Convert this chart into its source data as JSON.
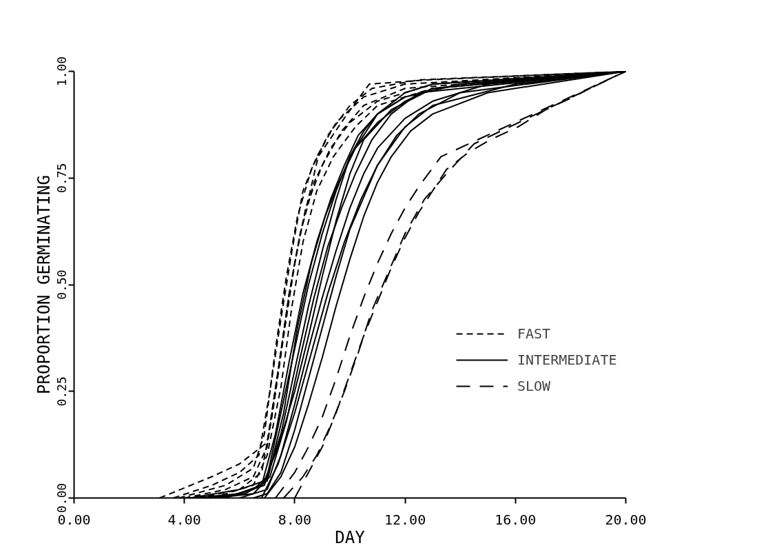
{
  "chart_data": {
    "type": "line",
    "xlabel": "DAY",
    "ylabel": "PROPORTION GERMINATING",
    "xlim": [
      0,
      20
    ],
    "ylim": [
      0,
      1
    ],
    "xticks": [
      {
        "value": 0,
        "label": "0.00"
      },
      {
        "value": 4,
        "label": "4.00"
      },
      {
        "value": 8,
        "label": "8.00"
      },
      {
        "value": 12,
        "label": "12.00"
      },
      {
        "value": 16,
        "label": "16.00"
      },
      {
        "value": 20,
        "label": "20.00"
      }
    ],
    "yticks": [
      {
        "value": 0,
        "label": "0.00"
      },
      {
        "value": 0.25,
        "label": "0.25"
      },
      {
        "value": 0.5,
        "label": "0.50"
      },
      {
        "value": 0.75,
        "label": "0.75"
      },
      {
        "value": 1,
        "label": "1.00"
      }
    ],
    "grid": false,
    "legend": "right",
    "series": [
      {
        "name": "FAST",
        "color": "#000000",
        "line_style": "dashed",
        "x": [
          3.1,
          5,
          6,
          7,
          7.4,
          7.8,
          8.2,
          8.85,
          9.9,
          10.7,
          12.8,
          20
        ],
        "values": [
          0,
          0.05,
          0.08,
          0.13,
          0.3,
          0.48,
          0.62,
          0.8,
          0.9,
          0.97,
          0.98,
          1
        ]
      },
      {
        "color": "#000000",
        "line_style": "dashed",
        "x": [
          3.6,
          5,
          6,
          6.7,
          7.1,
          7.5,
          7.9,
          8.3,
          8.8,
          9.5,
          10.5,
          12,
          20
        ],
        "values": [
          0,
          0.03,
          0.06,
          0.1,
          0.25,
          0.42,
          0.58,
          0.72,
          0.8,
          0.88,
          0.94,
          0.97,
          1
        ]
      },
      {
        "color": "#000000",
        "line_style": "dashed",
        "x": [
          4,
          5.5,
          6.5,
          7,
          7.4,
          7.8,
          8.2,
          8.7,
          9.3,
          10,
          11,
          13,
          20
        ],
        "values": [
          0,
          0.02,
          0.05,
          0.12,
          0.3,
          0.48,
          0.62,
          0.74,
          0.82,
          0.88,
          0.93,
          0.97,
          1
        ]
      },
      {
        "color": "#000000",
        "line_style": "dashed",
        "x": [
          4.5,
          6,
          6.8,
          7.2,
          7.6,
          8,
          8.4,
          9,
          9.7,
          10.5,
          12,
          20
        ],
        "values": [
          0,
          0.02,
          0.06,
          0.2,
          0.38,
          0.55,
          0.68,
          0.78,
          0.86,
          0.92,
          0.96,
          1
        ]
      },
      {
        "color": "#000000",
        "line_style": "dashed",
        "x": [
          5,
          6.5,
          7,
          7.5,
          7.9,
          8.3,
          8.8,
          9.4,
          10.2,
          11,
          13,
          20
        ],
        "values": [
          0,
          0.03,
          0.1,
          0.26,
          0.45,
          0.6,
          0.72,
          0.8,
          0.87,
          0.92,
          0.96,
          1
        ]
      },
      {
        "color": "#000000",
        "line_style": "dashed",
        "x": [
          3.8,
          5.5,
          6.5,
          6.9,
          7.3,
          7.7,
          8.1,
          8.6,
          9.2,
          10,
          10.8,
          12.5,
          20
        ],
        "values": [
          0,
          0.03,
          0.07,
          0.15,
          0.35,
          0.52,
          0.66,
          0.77,
          0.85,
          0.92,
          0.96,
          0.98,
          1
        ]
      },
      {
        "name": "INTERMEDIATE",
        "color": "#000000",
        "line_style": "solid",
        "x": [
          4.3,
          6,
          6.9,
          7.5,
          8,
          8.5,
          9,
          9.5,
          10,
          11,
          12,
          13,
          20
        ],
        "values": [
          0,
          0.01,
          0.03,
          0.15,
          0.3,
          0.45,
          0.58,
          0.7,
          0.8,
          0.9,
          0.95,
          0.97,
          1
        ]
      },
      {
        "color": "#000000",
        "line_style": "solid",
        "x": [
          5.3,
          6.5,
          7,
          7.5,
          8,
          8.5,
          9,
          9.5,
          10,
          10.5,
          11,
          12,
          14,
          20
        ],
        "values": [
          0,
          0.02,
          0.05,
          0.2,
          0.35,
          0.5,
          0.62,
          0.72,
          0.8,
          0.86,
          0.9,
          0.94,
          0.97,
          1
        ]
      },
      {
        "color": "#000000",
        "line_style": "solid",
        "x": [
          4.2,
          6,
          6.9,
          7.4,
          8,
          8.5,
          9,
          9.5,
          10,
          10.5,
          11.5,
          13,
          20
        ],
        "values": [
          0,
          0.02,
          0.04,
          0.12,
          0.25,
          0.38,
          0.52,
          0.65,
          0.76,
          0.84,
          0.91,
          0.96,
          1
        ]
      },
      {
        "color": "#000000",
        "line_style": "solid",
        "x": [
          6,
          7,
          7.5,
          8,
          8.5,
          9,
          9.5,
          10,
          10.5,
          11,
          12,
          13,
          15,
          20
        ],
        "values": [
          0,
          0.02,
          0.1,
          0.22,
          0.35,
          0.47,
          0.58,
          0.68,
          0.76,
          0.82,
          0.89,
          0.93,
          0.97,
          1
        ]
      },
      {
        "color": "#000000",
        "line_style": "solid",
        "x": [
          5.5,
          6.8,
          7.3,
          7.8,
          8.3,
          8.8,
          9.3,
          9.8,
          10.3,
          11,
          12,
          14,
          20
        ],
        "values": [
          0,
          0.03,
          0.15,
          0.32,
          0.48,
          0.6,
          0.7,
          0.78,
          0.85,
          0.9,
          0.94,
          0.97,
          1
        ]
      },
      {
        "color": "#000000",
        "line_style": "solid",
        "x": [
          6.5,
          7,
          7.5,
          8,
          8.5,
          9,
          9.5,
          10,
          11,
          12,
          13,
          16,
          20
        ],
        "values": [
          0,
          0.01,
          0.06,
          0.16,
          0.28,
          0.4,
          0.52,
          0.63,
          0.78,
          0.87,
          0.92,
          0.97,
          1
        ]
      },
      {
        "color": "#000000",
        "line_style": "solid",
        "x": [
          4.8,
          6.2,
          7,
          7.6,
          8.1,
          8.6,
          9.1,
          9.6,
          10.2,
          11,
          12,
          13,
          20
        ],
        "values": [
          0,
          0.01,
          0.04,
          0.2,
          0.4,
          0.55,
          0.66,
          0.74,
          0.82,
          0.88,
          0.93,
          0.96,
          1
        ]
      },
      {
        "color": "#000000",
        "line_style": "solid",
        "x": [
          6.8,
          7.4,
          8,
          8.6,
          9.2,
          9.8,
          10.4,
          11,
          11.7,
          12.5,
          14,
          20
        ],
        "values": [
          0,
          0.08,
          0.2,
          0.34,
          0.48,
          0.6,
          0.7,
          0.78,
          0.85,
          0.9,
          0.95,
          1
        ]
      },
      {
        "color": "#000000",
        "line_style": "solid",
        "x": [
          5.1,
          6.5,
          7.1,
          7.7,
          8.2,
          8.7,
          9.2,
          9.7,
          10.2,
          10.8,
          11.5,
          12.5,
          20
        ],
        "values": [
          0,
          0.01,
          0.05,
          0.18,
          0.33,
          0.47,
          0.59,
          0.68,
          0.76,
          0.84,
          0.9,
          0.95,
          1
        ]
      },
      {
        "color": "#000000",
        "line_style": "solid",
        "x": [
          6.9,
          7.5,
          8,
          8.5,
          9,
          9.5,
          10,
          10.5,
          11,
          11.5,
          12.2,
          13,
          15,
          20
        ],
        "values": [
          0,
          0.05,
          0.12,
          0.22,
          0.33,
          0.45,
          0.56,
          0.66,
          0.74,
          0.8,
          0.86,
          0.9,
          0.95,
          1
        ]
      },
      {
        "name": "SLOW",
        "color": "#000000",
        "line_style": "longdash",
        "x": [
          7.3,
          8,
          8.5,
          9,
          9.5,
          10,
          10.5,
          11,
          11.5,
          12,
          12.5,
          13.3,
          20
        ],
        "values": [
          0,
          0.06,
          0.12,
          0.19,
          0.28,
          0.38,
          0.47,
          0.55,
          0.62,
          0.68,
          0.73,
          0.8,
          1
        ]
      },
      {
        "color": "#000000",
        "line_style": "longdash",
        "x": [
          7.6,
          8.3,
          8.8,
          9.3,
          9.8,
          10.3,
          10.8,
          11.4,
          12,
          12.7,
          13.5,
          14.5,
          20
        ],
        "values": [
          0,
          0.05,
          0.1,
          0.17,
          0.25,
          0.34,
          0.44,
          0.53,
          0.62,
          0.7,
          0.76,
          0.83,
          1
        ]
      },
      {
        "color": "#000000",
        "line_style": "longdash",
        "x": [
          8,
          9,
          9.5,
          10,
          10.5,
          11,
          11.5,
          12,
          12.5,
          13,
          13.5,
          14.3,
          15.1,
          16.1,
          17.1,
          18.1,
          19,
          20
        ],
        "values": [
          0,
          0.12,
          0.2,
          0.29,
          0.38,
          0.46,
          0.54,
          0.61,
          0.67,
          0.72,
          0.77,
          0.81,
          0.84,
          0.87,
          0.91,
          0.94,
          0.97,
          1
        ]
      }
    ]
  }
}
